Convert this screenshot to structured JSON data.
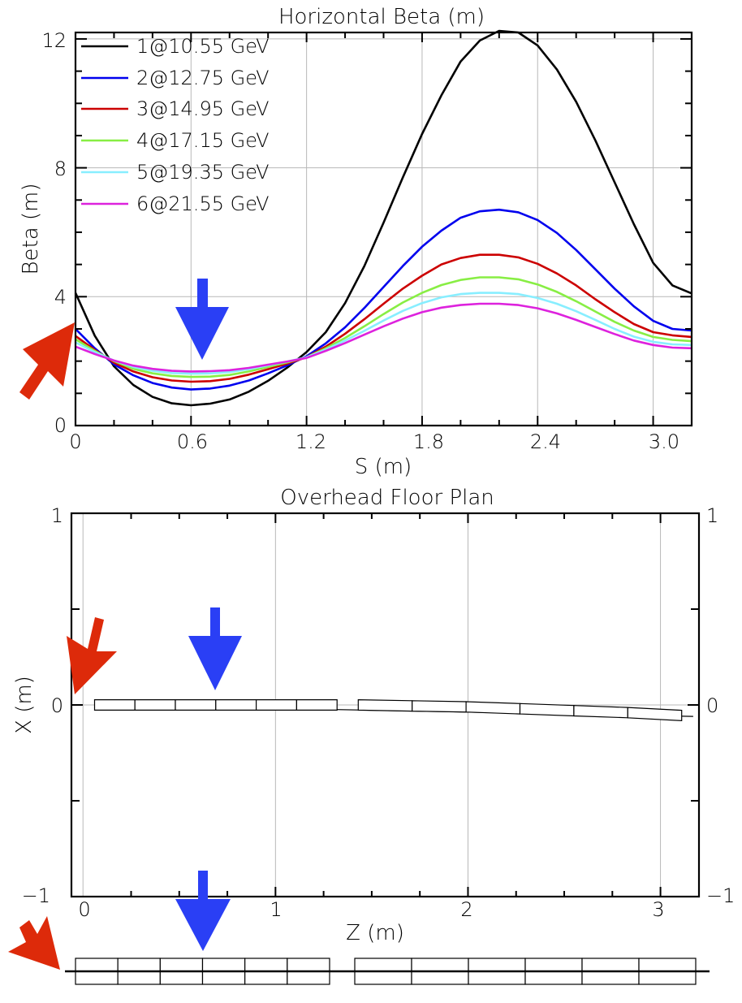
{
  "chart_data": [
    {
      "type": "line",
      "title": "Horizontal Beta (m)",
      "xlabel": "S (m)",
      "ylabel": "Beta (m)",
      "xlim": [
        0,
        3.2
      ],
      "ylim": [
        0,
        12.2
      ],
      "xticks": [
        "0",
        "0.6",
        "1.2",
        "1.8",
        "2.4",
        "3.0"
      ],
      "yticks": [
        "0",
        "4",
        "8",
        "12"
      ],
      "grid": true,
      "legend_position": "top-left",
      "x": [
        0,
        0.1,
        0.2,
        0.3,
        0.4,
        0.5,
        0.6,
        0.7,
        0.8,
        0.9,
        1.0,
        1.1,
        1.2,
        1.3,
        1.4,
        1.5,
        1.6,
        1.7,
        1.8,
        1.9,
        2.0,
        2.1,
        2.2,
        2.3,
        2.4,
        2.5,
        2.6,
        2.7,
        2.8,
        2.9,
        3.0,
        3.1,
        3.2
      ],
      "series": [
        {
          "name": "1@10.55 GeV",
          "color": "#000000",
          "values": [
            4.12,
            2.79,
            1.84,
            1.26,
            0.89,
            0.69,
            0.63,
            0.68,
            0.81,
            1.05,
            1.39,
            1.8,
            2.28,
            2.9,
            3.8,
            4.95,
            6.3,
            7.7,
            9.05,
            10.25,
            11.3,
            11.95,
            12.25,
            12.2,
            11.8,
            11.05,
            10.05,
            8.85,
            7.55,
            6.25,
            5.05,
            4.35,
            4.1
          ]
        },
        {
          "name": "2@12.75 GeV",
          "color": "#0000ee",
          "values": [
            3.0,
            2.4,
            1.9,
            1.56,
            1.32,
            1.18,
            1.12,
            1.15,
            1.24,
            1.4,
            1.62,
            1.87,
            2.15,
            2.55,
            3.05,
            3.65,
            4.3,
            4.95,
            5.55,
            6.05,
            6.45,
            6.65,
            6.7,
            6.62,
            6.38,
            5.98,
            5.45,
            4.85,
            4.25,
            3.7,
            3.25,
            3.0,
            2.95
          ]
        },
        {
          "name": "3@14.95 GeV",
          "color": "#cc0000",
          "values": [
            2.78,
            2.35,
            1.95,
            1.68,
            1.5,
            1.4,
            1.36,
            1.38,
            1.45,
            1.58,
            1.75,
            1.92,
            2.12,
            2.45,
            2.85,
            3.3,
            3.78,
            4.25,
            4.65,
            5.0,
            5.2,
            5.3,
            5.3,
            5.22,
            5.02,
            4.72,
            4.35,
            3.92,
            3.52,
            3.15,
            2.9,
            2.8,
            2.75
          ]
        },
        {
          "name": "4@17.15 GeV",
          "color": "#88ee44",
          "values": [
            2.68,
            2.32,
            2.0,
            1.76,
            1.62,
            1.54,
            1.51,
            1.52,
            1.57,
            1.68,
            1.82,
            1.96,
            2.12,
            2.4,
            2.72,
            3.08,
            3.46,
            3.82,
            4.12,
            4.36,
            4.52,
            4.6,
            4.6,
            4.54,
            4.38,
            4.15,
            3.86,
            3.54,
            3.22,
            2.95,
            2.75,
            2.66,
            2.62
          ]
        },
        {
          "name": "5@19.35 GeV",
          "color": "#88eeff",
          "values": [
            2.58,
            2.28,
            2.02,
            1.82,
            1.7,
            1.63,
            1.61,
            1.62,
            1.66,
            1.75,
            1.87,
            1.99,
            2.12,
            2.36,
            2.64,
            2.94,
            3.26,
            3.56,
            3.8,
            3.98,
            4.08,
            4.12,
            4.12,
            4.08,
            3.96,
            3.78,
            3.55,
            3.28,
            3.0,
            2.76,
            2.6,
            2.52,
            2.5
          ]
        },
        {
          "name": "6@21.55 GeV",
          "color": "#dd22dd",
          "values": [
            2.45,
            2.22,
            2.02,
            1.86,
            1.76,
            1.7,
            1.68,
            1.69,
            1.72,
            1.79,
            1.89,
            1.99,
            2.1,
            2.32,
            2.56,
            2.82,
            3.08,
            3.32,
            3.52,
            3.66,
            3.74,
            3.78,
            3.78,
            3.74,
            3.64,
            3.48,
            3.28,
            3.06,
            2.84,
            2.64,
            2.5,
            2.42,
            2.4
          ]
        }
      ]
    },
    {
      "type": "scatter",
      "title": "Overhead Floor Plan",
      "xlabel": "Z (m)",
      "ylabel": "X (m)",
      "xlim": [
        -0.06,
        3.2
      ],
      "ylim": [
        -1,
        1
      ],
      "xticks": [
        "0",
        "1",
        "2",
        "3"
      ],
      "yticks": [
        "1",
        "0",
        "-1"
      ],
      "yticks_right": [
        "1",
        "0",
        "−1"
      ],
      "yticks_left": [
        "1",
        "0",
        "−1"
      ],
      "grid": true,
      "elements": [
        {
          "z0": 0.06,
          "z1": 0.27,
          "x0": 0.0,
          "x1": 0.0
        },
        {
          "z0": 0.27,
          "z1": 0.48,
          "x0": 0.0,
          "x1": 0.0
        },
        {
          "z0": 0.48,
          "z1": 0.69,
          "x0": 0.0,
          "x1": 0.0
        },
        {
          "z0": 0.69,
          "z1": 0.9,
          "x0": 0.0,
          "x1": 0.0
        },
        {
          "z0": 0.9,
          "z1": 1.11,
          "x0": 0.0,
          "x1": 0.0
        },
        {
          "z0": 1.11,
          "z1": 1.32,
          "x0": 0.0,
          "x1": 0.0
        },
        {
          "z0": 1.43,
          "z1": 1.71,
          "x0": 0.0,
          "x1": -0.005
        },
        {
          "z0": 1.71,
          "z1": 1.99,
          "x0": -0.005,
          "x1": -0.01
        },
        {
          "z0": 1.99,
          "z1": 2.27,
          "x0": -0.01,
          "x1": -0.02
        },
        {
          "z0": 2.27,
          "z1": 2.55,
          "x0": -0.02,
          "x1": -0.03
        },
        {
          "z0": 2.55,
          "z1": 2.83,
          "x0": -0.03,
          "x1": -0.04
        },
        {
          "z0": 2.83,
          "z1": 3.11,
          "x0": -0.04,
          "x1": -0.055
        }
      ]
    }
  ],
  "markers": {
    "blue_arrow_color": "#2a3ff5",
    "red_arrow_color": "#dd2a0a"
  },
  "layout_strip": {
    "left_group_count": 6,
    "right_group_count": 6
  }
}
